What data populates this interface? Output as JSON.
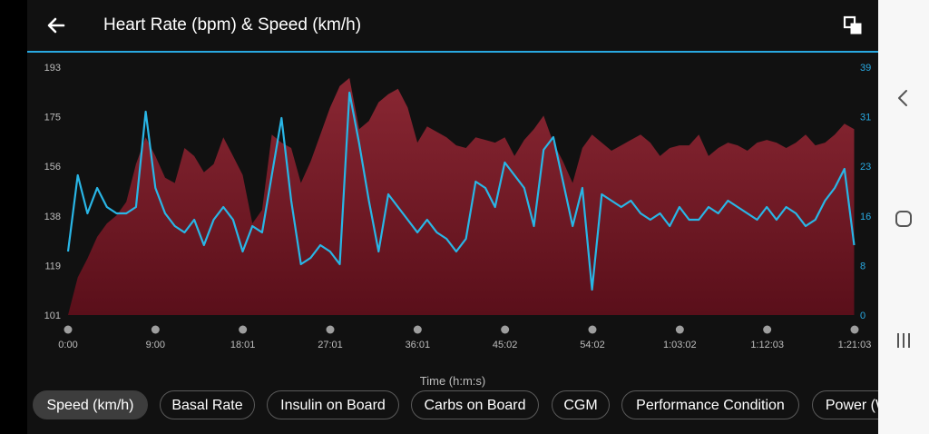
{
  "header": {
    "title": "Heart Rate (bpm) & Speed (km/h)",
    "back_icon": "back-arrow-icon",
    "expand_icon": "expand-icon"
  },
  "colors": {
    "accent": "#29a9e1",
    "hr_fill_top": "#8a2733",
    "hr_fill_bottom": "#5a0f1a",
    "speed_line": "#29b6e6",
    "left_axis_text": "#bdbdbd",
    "right_axis_text": "#29a9e1"
  },
  "chips": [
    {
      "label": "Speed (km/h)",
      "active": true
    },
    {
      "label": "Basal Rate",
      "active": false
    },
    {
      "label": "Insulin on Board",
      "active": false
    },
    {
      "label": "Carbs on Board",
      "active": false
    },
    {
      "label": "CGM",
      "active": false
    },
    {
      "label": "Performance Condition",
      "active": false
    },
    {
      "label": "Power (W",
      "active": false
    }
  ],
  "navbar": {
    "back_icon": "nav-back-icon",
    "home_icon": "nav-home-icon",
    "recents_icon": "nav-recents-icon"
  },
  "chart_data": {
    "type": "area",
    "title": "Heart Rate (bpm) & Speed (km/h)",
    "xlabel": "Time (h:m:s)",
    "x_ticks": [
      "0:00",
      "9:00",
      "18:01",
      "27:01",
      "36:01",
      "45:02",
      "54:02",
      "1:03:02",
      "1:12:03",
      "1:21:03"
    ],
    "x_range_minutes": [
      0,
      81.05
    ],
    "y_left": {
      "label": "Heart Rate (bpm)",
      "ticks": [
        "193",
        "175",
        "156",
        "138",
        "119",
        "101"
      ],
      "range": [
        101,
        193
      ]
    },
    "y_right": {
      "label": "Speed (km/h)",
      "ticks": [
        "39",
        "31",
        "23",
        "16",
        "8",
        "0"
      ],
      "range": [
        0,
        39
      ]
    },
    "grid": false,
    "series": [
      {
        "name": "Heart Rate (bpm)",
        "kind": "area",
        "x": [
          0,
          1,
          2,
          3,
          4,
          5,
          6,
          7,
          8,
          9,
          10,
          11,
          12,
          13,
          14,
          15,
          16,
          17,
          18,
          19,
          20,
          21,
          22,
          23,
          24,
          25,
          26,
          27,
          28,
          29,
          30,
          31,
          32,
          33,
          34,
          35,
          36,
          37,
          38,
          39,
          40,
          41,
          42,
          43,
          44,
          45,
          46,
          47,
          48,
          49,
          50,
          51,
          52,
          53,
          54,
          55,
          56,
          57,
          58,
          59,
          60,
          61,
          62,
          63,
          64,
          65,
          66,
          67,
          68,
          69,
          70,
          71,
          72,
          73,
          74,
          75,
          76,
          77,
          78,
          79,
          80,
          81
        ],
        "values": [
          101,
          115,
          122,
          130,
          135,
          138,
          143,
          157,
          167,
          160,
          152,
          150,
          163,
          160,
          154,
          157,
          167,
          160,
          153,
          135,
          140,
          168,
          165,
          163,
          150,
          158,
          168,
          178,
          186,
          189,
          170,
          173,
          180,
          183,
          185,
          178,
          165,
          171,
          169,
          167,
          164,
          163,
          167,
          166,
          165,
          167,
          160,
          166,
          170,
          175,
          165,
          158,
          150,
          163,
          168,
          165,
          162,
          164,
          166,
          168,
          165,
          160,
          163,
          164,
          164,
          168,
          160,
          163,
          165,
          164,
          162,
          165,
          166,
          165,
          163,
          165,
          168,
          164,
          165,
          168,
          172,
          170
        ]
      },
      {
        "name": "Speed (km/h)",
        "kind": "line",
        "x": [
          0,
          1,
          2,
          3,
          4,
          5,
          6,
          7,
          8,
          9,
          10,
          11,
          12,
          13,
          14,
          15,
          16,
          17,
          18,
          19,
          20,
          21,
          22,
          23,
          24,
          25,
          26,
          27,
          28,
          29,
          30,
          31,
          32,
          33,
          34,
          35,
          36,
          37,
          38,
          39,
          40,
          41,
          42,
          43,
          44,
          45,
          46,
          47,
          48,
          49,
          50,
          51,
          52,
          53,
          54,
          55,
          56,
          57,
          58,
          59,
          60,
          61,
          62,
          63,
          64,
          65,
          66,
          67,
          68,
          69,
          70,
          71,
          72,
          73,
          74,
          75,
          76,
          77,
          78,
          79,
          80,
          81
        ],
        "values": [
          10,
          22,
          16,
          20,
          17,
          16,
          16,
          17,
          32,
          20,
          16,
          14,
          13,
          15,
          11,
          15,
          17,
          15,
          10,
          14,
          13,
          22,
          31,
          18,
          8,
          9,
          11,
          10,
          8,
          35,
          27,
          18,
          10,
          19,
          17,
          15,
          13,
          15,
          13,
          12,
          10,
          12,
          21,
          20,
          17,
          24,
          22,
          20,
          14,
          26,
          28,
          21,
          14,
          20,
          4,
          19,
          18,
          17,
          18,
          16,
          15,
          16,
          14,
          17,
          15,
          15,
          17,
          16,
          18,
          17,
          16,
          15,
          17,
          15,
          17,
          16,
          14,
          15,
          18,
          20,
          23,
          11
        ]
      }
    ]
  }
}
